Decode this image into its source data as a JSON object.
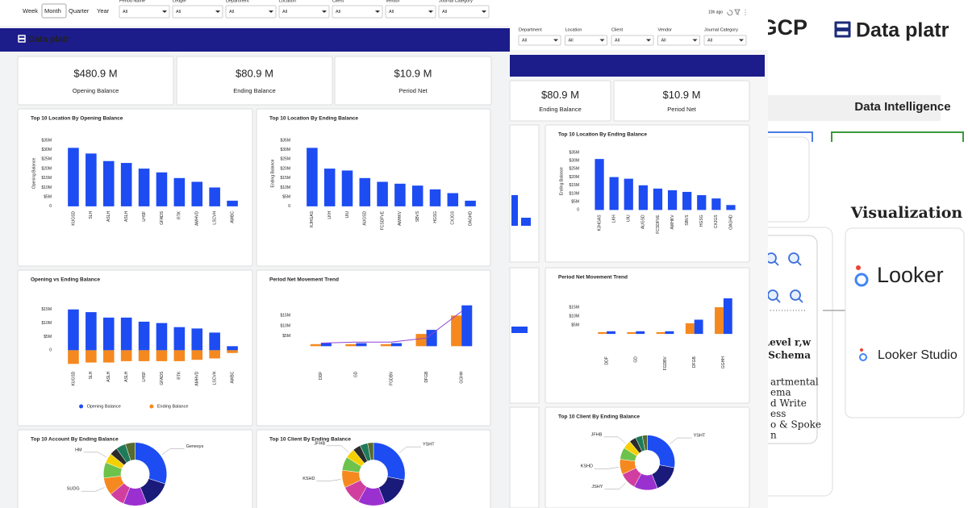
{
  "left": {
    "tabs": [
      "Week",
      "Month",
      "Quarter",
      "Year"
    ],
    "active_tab": 1,
    "filters": [
      {
        "label": "Period Name",
        "value": "All"
      },
      {
        "label": "Ledger",
        "value": "All"
      },
      {
        "label": "Department",
        "value": "All"
      },
      {
        "label": "Location",
        "value": "All"
      },
      {
        "label": "Client",
        "value": "All"
      },
      {
        "label": "Vendor",
        "value": "All"
      },
      {
        "label": "Journal Category",
        "value": "All"
      }
    ],
    "brand": "Data platr",
    "kpis": [
      {
        "value": "$480.9 M",
        "label": "Opening Balance"
      },
      {
        "value": "$80.9 M",
        "label": "Ending Balance"
      },
      {
        "value": "$10.9 M",
        "label": "Period Net"
      }
    ],
    "charts": [
      {
        "type": "bar",
        "title": "Top 10 Location By Opening Balance",
        "y_label": "Opening Balance",
        "categories": [
          "KUGSD",
          "SLH",
          "ASLH",
          "ASLH",
          "LHSF",
          "GFADS",
          "RTK",
          "AMHVD",
          "LSCVH",
          "AWBC"
        ],
        "values": [
          31,
          28,
          24,
          23,
          20,
          18,
          15,
          13,
          10,
          3
        ],
        "color": "#1d4cf2",
        "ylim": [
          0,
          35
        ],
        "yticks": [
          0,
          {
            "value": 5,
            "label": "$5M"
          },
          {
            "value": 10,
            "label": "$10M"
          },
          {
            "value": 15,
            "label": "$15M"
          },
          {
            "value": 20,
            "label": "$20M"
          },
          {
            "value": 25,
            "label": "$25M"
          },
          {
            "value": 30,
            "label": "$30M"
          },
          {
            "value": 35,
            "label": "$35M"
          }
        ]
      },
      {
        "type": "bar",
        "title": "Top 10 Location By Ending Balance",
        "y_label": "Ending Balance",
        "categories": [
          "KJHGAS",
          "LKH",
          "UIU",
          "AUGSD",
          "FCSDFVE",
          "AWHKV",
          "SBVS",
          "HGSG",
          "CXJGS",
          "OAGHD"
        ],
        "values": [
          31,
          20,
          19,
          15,
          13,
          12,
          11,
          9,
          7,
          3
        ],
        "color": "#1d4cf2",
        "ylim": [
          0,
          35
        ],
        "yticks": [
          0,
          {
            "value": 5,
            "label": "$5M"
          },
          {
            "value": 10,
            "label": "$10M"
          },
          {
            "value": 15,
            "label": "$15M"
          },
          {
            "value": 20,
            "label": "$20M"
          },
          {
            "value": 25,
            "label": "$25M"
          },
          {
            "value": 30,
            "label": "$30M"
          },
          {
            "value": 35,
            "label": "$35M"
          }
        ]
      },
      {
        "type": "bar",
        "title": "Opening vs Ending Balance",
        "bar_mode": "overlay",
        "legend": true,
        "categories": [
          "KUGSD",
          "SLH",
          "ASLH",
          "ASLH",
          "LHSF",
          "GFADS",
          "RTK",
          "AMHVD",
          "LSCVH",
          "AWBC"
        ],
        "series": [
          {
            "name": "Opening Balance",
            "color": "#1d4cf2",
            "values": [
              15,
              14,
              12,
              12,
              10.5,
              10,
              8.5,
              8,
              6.5,
              1.5
            ]
          },
          {
            "name": "Ending Balance",
            "color": "#f5891f",
            "values": [
              -5,
              -4.5,
              -4.5,
              -4,
              -4,
              -4,
              -4,
              -3.5,
              -3,
              -1
            ]
          }
        ],
        "ylim": [
          -6,
          18
        ],
        "yticks": [
          0,
          {
            "value": 5,
            "label": "$5M"
          },
          {
            "value": 10,
            "label": "$10M"
          },
          {
            "value": 15,
            "label": "$15M"
          }
        ]
      },
      {
        "type": "bar",
        "title": "Period Net Movement Trend",
        "bar_mode": "grouped",
        "categories": [
          "DDF",
          "GD",
          "FGDBV",
          "DFGB",
          "GGHH"
        ],
        "series": [
          {
            "color": "#f5891f",
            "values": [
              1,
              1,
              1,
              6,
              15
            ]
          },
          {
            "color": "#1d4cf2",
            "values": [
              1.5,
              1.5,
              1.5,
              8,
              20
            ]
          },
          {
            "color": "#8e44d6",
            "type": "line",
            "values": [
              1.5,
              2,
              2,
              4,
              17
            ]
          }
        ],
        "ylim": [
          -10,
          22
        ],
        "yticks": [
          {
            "value": 5,
            "label": "$5M"
          },
          {
            "value": 10,
            "label": "$10M"
          },
          {
            "value": 15,
            "label": "$15M"
          }
        ]
      },
      {
        "type": "donut",
        "title": "Top 10 Account By Ending Balance",
        "categories": [
          "Genesys",
          null,
          null,
          null,
          "SUDG",
          null,
          "HM",
          null,
          null,
          null
        ],
        "values": [
          30,
          14,
          12,
          8,
          9,
          8,
          5,
          4,
          5,
          5
        ],
        "colors": [
          "#1d4cf2",
          "#1a1a7a",
          "#9b30d0",
          "#d03fa0",
          "#f5891f",
          "#6cc24a",
          "#f5d000",
          "#2b2b2b",
          "#1e7b5a",
          "#556b2f"
        ]
      },
      {
        "type": "donut",
        "title": "Top 10 Client By Ending Balance",
        "categories": [
          "YSHT",
          null,
          null,
          null,
          "KSHD",
          null,
          "JFHB",
          null,
          null,
          null
        ],
        "values": [
          28,
          16,
          14,
          10,
          9,
          7,
          5,
          4,
          4,
          3
        ],
        "colors": [
          "#1d4cf2",
          "#1a1a7a",
          "#9b30d0",
          "#d03fa0",
          "#f5891f",
          "#6cc24a",
          "#f5d000",
          "#2b2b2b",
          "#1e7b5a",
          "#556b2f"
        ]
      }
    ]
  },
  "middle": {
    "updated": "10h ago",
    "filters": [
      {
        "label": "Department",
        "value": "All"
      },
      {
        "label": "Location",
        "value": "All"
      },
      {
        "label": "Client",
        "value": "All"
      },
      {
        "label": "Vendor",
        "value": "All"
      },
      {
        "label": "Journal Category",
        "value": "All"
      }
    ],
    "kpis": [
      {
        "value": "$80.9 M",
        "label": "Ending Balance"
      },
      {
        "value": "$10.9 M",
        "label": "Period Net"
      }
    ],
    "charts": [
      {
        "type": "bar",
        "title": "Top 10 Location By Ending Balance",
        "y_label": "Ending Balance",
        "categories": [
          "KJHGAS",
          "LKH",
          "UIU",
          "AUGSD",
          "FCSDFVE",
          "AWHKV",
          "SBVS",
          "HGSG",
          "CXJGS",
          "OAGHD"
        ],
        "values": [
          31,
          20,
          19,
          15,
          13,
          12,
          11,
          9,
          7,
          3
        ],
        "color": "#1d4cf2",
        "ylim": [
          0,
          35
        ],
        "yticks": [
          0,
          {
            "value": 5,
            "label": "$5M"
          },
          {
            "value": 10,
            "label": "$10M"
          },
          {
            "value": 15,
            "label": "$15M"
          },
          {
            "value": 20,
            "label": "$20M"
          },
          {
            "value": 25,
            "label": "$25M"
          },
          {
            "value": 30,
            "label": "$30M"
          },
          {
            "value": 35,
            "label": "$35M"
          }
        ]
      },
      {
        "type": "bar",
        "title": "Period Net Movement Trend",
        "bar_mode": "grouped",
        "categories": [
          "DDF",
          "GD",
          "FGDBV",
          "DFGB",
          "GGHH"
        ],
        "series": [
          {
            "color": "#f5891f",
            "values": [
              1,
              1,
              1,
              6,
              15
            ]
          },
          {
            "color": "#1d4cf2",
            "values": [
              1.5,
              1.5,
              1.5,
              8,
              20
            ]
          }
        ],
        "ylim": [
          -10,
          22
        ],
        "yticks": [
          {
            "value": 5,
            "label": "$5M"
          },
          {
            "value": 10,
            "label": "$10M"
          },
          {
            "value": 15,
            "label": "$15M"
          }
        ]
      },
      {
        "type": "donut",
        "title": "Top 10 Client By Ending Balance",
        "categories": [
          "YSHT",
          null,
          null,
          "JSHY",
          "KSHD",
          null,
          "JFHB",
          null,
          null,
          null
        ],
        "values": [
          28,
          16,
          14,
          10,
          9,
          7,
          5,
          4,
          4,
          3
        ],
        "colors": [
          "#1d4cf2",
          "#1a1a7a",
          "#9b30d0",
          "#d03fa0",
          "#f5891f",
          "#6cc24a",
          "#f5d000",
          "#2b2b2b",
          "#1e7b5a",
          "#556b2f"
        ]
      }
    ]
  },
  "right": {
    "cloud": "GCP",
    "brand": "Data platr",
    "band": "Data Intelligence",
    "heading": "Visualization",
    "tools": [
      "Looker",
      "Looker Studio"
    ],
    "layer": [
      "Level r,w",
      "t Schema"
    ],
    "notes": [
      "artmental",
      "ema",
      "d Write",
      "ess",
      "o & Spoke",
      "n"
    ]
  }
}
